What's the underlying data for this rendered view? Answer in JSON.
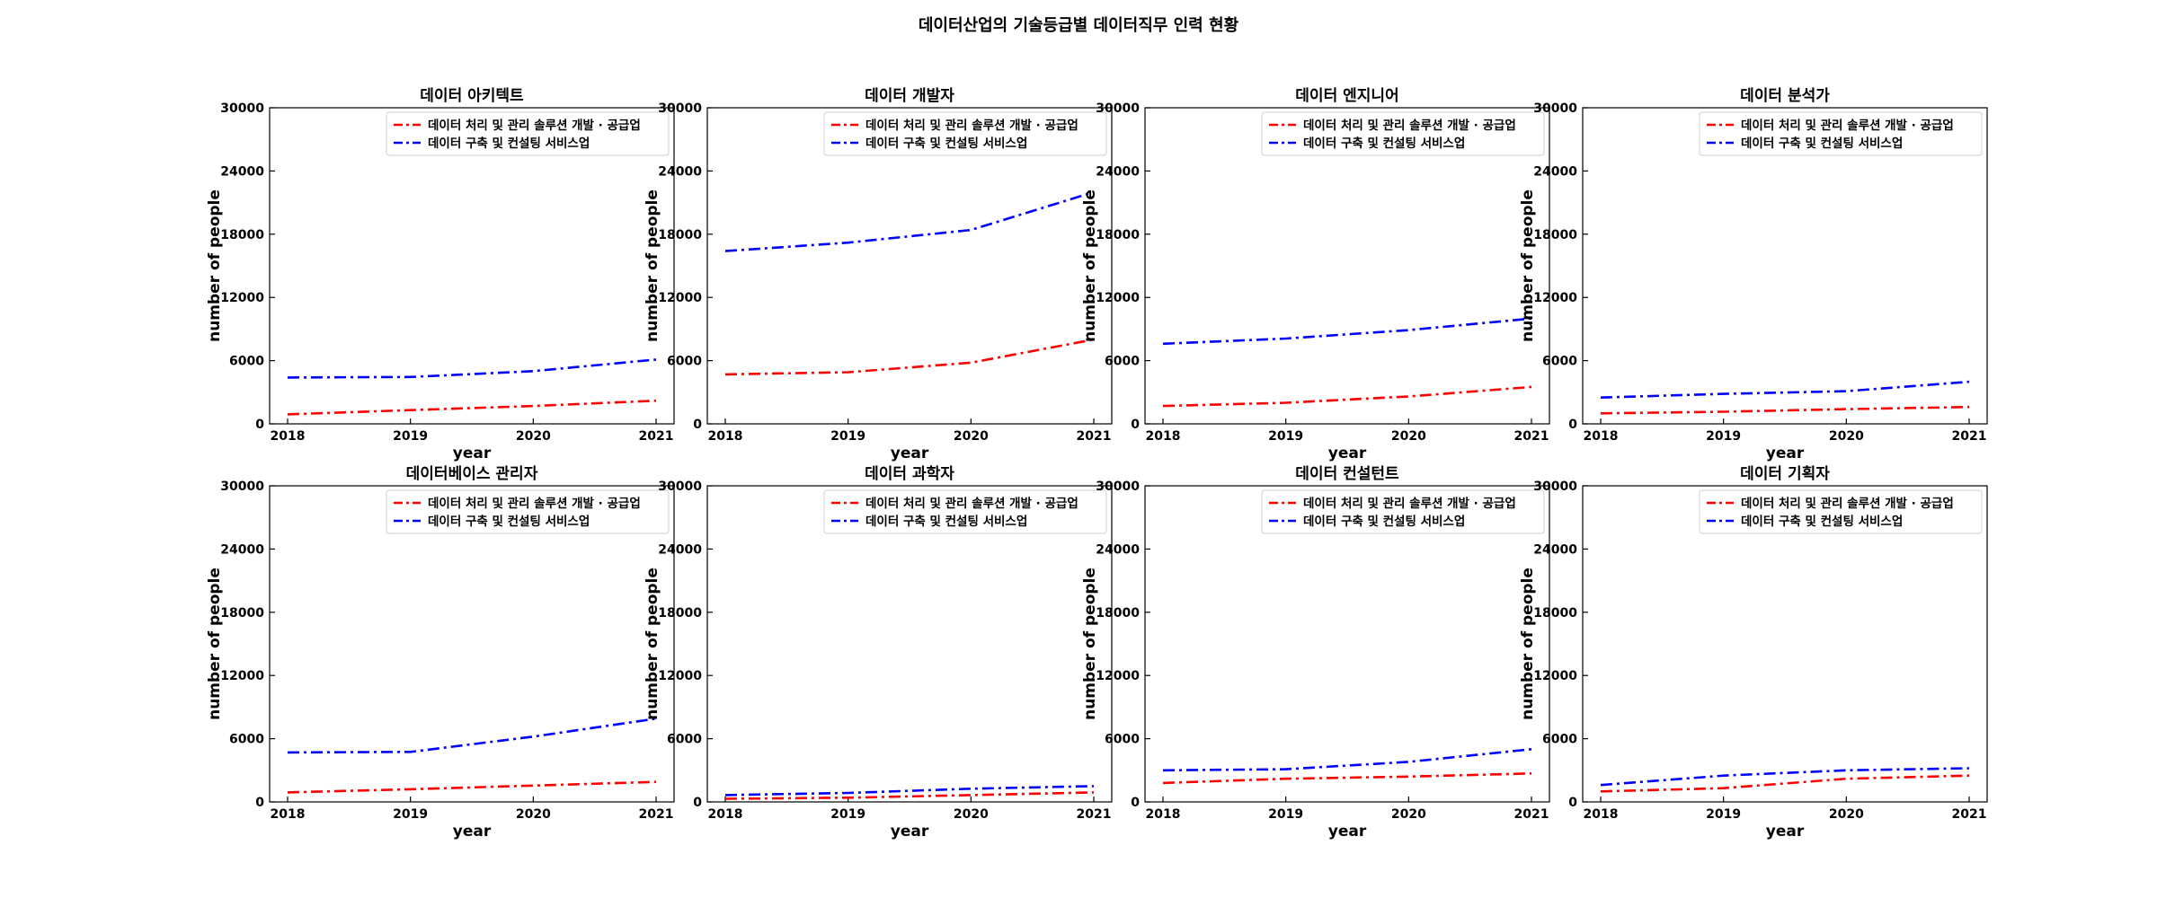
{
  "figure": {
    "title": "데이터산업의 기술등급별 데이터직무 인력 현황"
  },
  "colors": {
    "series_1": "#ff0000",
    "series_2": "#0000ff"
  },
  "chart_data": [
    {
      "type": "line",
      "title": "데이터 아키텍트",
      "xlabel": "year",
      "ylabel": "number of people",
      "x": [
        2018,
        2019,
        2020,
        2021
      ],
      "ylim": [
        0,
        30000
      ],
      "yticks": [
        0,
        6000,
        12000,
        18000,
        24000,
        30000
      ],
      "grid": false,
      "legend_position": "top-right",
      "series": [
        {
          "name": "데이터 처리 및 관리 솔루션 개발 · 공급업",
          "values": [
            900,
            1300,
            1700,
            2200
          ],
          "color": "#ff0000",
          "style": "dashdot"
        },
        {
          "name": "데이터 구축 및 컨설팅 서비스업",
          "values": [
            4400,
            4450,
            5000,
            6100
          ],
          "color": "#0000ff",
          "style": "dashdot"
        }
      ]
    },
    {
      "type": "line",
      "title": "데이터 개발자",
      "xlabel": "year",
      "ylabel": "number of people",
      "x": [
        2018,
        2019,
        2020,
        2021
      ],
      "ylim": [
        0,
        30000
      ],
      "yticks": [
        0,
        6000,
        12000,
        18000,
        24000,
        30000
      ],
      "grid": false,
      "legend_position": "top-right",
      "series": [
        {
          "name": "데이터 처리 및 관리 솔루션 개발 · 공급업",
          "values": [
            4700,
            4900,
            5800,
            8000
          ],
          "color": "#ff0000",
          "style": "dashdot"
        },
        {
          "name": "데이터 구축 및 컨설팅 서비스업",
          "values": [
            16400,
            17200,
            18400,
            22000
          ],
          "color": "#0000ff",
          "style": "dashdot"
        }
      ]
    },
    {
      "type": "line",
      "title": "데이터 엔지니어",
      "xlabel": "year",
      "ylabel": "number of people",
      "x": [
        2018,
        2019,
        2020,
        2021
      ],
      "ylim": [
        0,
        30000
      ],
      "yticks": [
        0,
        6000,
        12000,
        18000,
        24000,
        30000
      ],
      "grid": false,
      "legend_position": "top-right",
      "series": [
        {
          "name": "데이터 처리 및 관리 솔루션 개발 · 공급업",
          "values": [
            1700,
            2000,
            2600,
            3500
          ],
          "color": "#ff0000",
          "style": "dashdot"
        },
        {
          "name": "데이터 구축 및 컨설팅 서비스업",
          "values": [
            7600,
            8100,
            8900,
            10000
          ],
          "color": "#0000ff",
          "style": "dashdot"
        }
      ]
    },
    {
      "type": "line",
      "title": "데이터 분석가",
      "xlabel": "year",
      "ylabel": "number of people",
      "x": [
        2018,
        2019,
        2020,
        2021
      ],
      "ylim": [
        0,
        30000
      ],
      "yticks": [
        0,
        6000,
        12000,
        18000,
        24000,
        30000
      ],
      "grid": false,
      "legend_position": "top-right",
      "series": [
        {
          "name": "데이터 처리 및 관리 솔루션 개발 · 공급업",
          "values": [
            1000,
            1150,
            1400,
            1600
          ],
          "color": "#ff0000",
          "style": "dashdot"
        },
        {
          "name": "데이터 구축 및 컨설팅 서비스업",
          "values": [
            2500,
            2850,
            3100,
            4000
          ],
          "color": "#0000ff",
          "style": "dashdot"
        }
      ]
    },
    {
      "type": "line",
      "title": "데이터베이스 관리자",
      "xlabel": "year",
      "ylabel": "number of people",
      "x": [
        2018,
        2019,
        2020,
        2021
      ],
      "ylim": [
        0,
        30000
      ],
      "yticks": [
        0,
        6000,
        12000,
        18000,
        24000,
        30000
      ],
      "grid": false,
      "legend_position": "top-right",
      "series": [
        {
          "name": "데이터 처리 및 관리 솔루션 개발 · 공급업",
          "values": [
            900,
            1200,
            1550,
            1900
          ],
          "color": "#ff0000",
          "style": "dashdot"
        },
        {
          "name": "데이터 구축 및 컨설팅 서비스업",
          "values": [
            4700,
            4750,
            6200,
            7900
          ],
          "color": "#0000ff",
          "style": "dashdot"
        }
      ]
    },
    {
      "type": "line",
      "title": "데이터 과학자",
      "xlabel": "year",
      "ylabel": "number of people",
      "x": [
        2018,
        2019,
        2020,
        2021
      ],
      "ylim": [
        0,
        30000
      ],
      "yticks": [
        0,
        6000,
        12000,
        18000,
        24000,
        30000
      ],
      "grid": false,
      "legend_position": "top-right",
      "series": [
        {
          "name": "데이터 처리 및 관리 솔루션 개발 · 공급업",
          "values": [
            300,
            400,
            650,
            900
          ],
          "color": "#ff0000",
          "style": "dashdot"
        },
        {
          "name": "데이터 구축 및 컨설팅 서비스업",
          "values": [
            650,
            850,
            1250,
            1500
          ],
          "color": "#0000ff",
          "style": "dashdot"
        }
      ]
    },
    {
      "type": "line",
      "title": "데이터 컨설턴트",
      "xlabel": "year",
      "ylabel": "number of people",
      "x": [
        2018,
        2019,
        2020,
        2021
      ],
      "ylim": [
        0,
        30000
      ],
      "yticks": [
        0,
        6000,
        12000,
        18000,
        24000,
        30000
      ],
      "grid": false,
      "legend_position": "top-right",
      "series": [
        {
          "name": "데이터 처리 및 관리 솔루션 개발 · 공급업",
          "values": [
            1800,
            2200,
            2400,
            2700
          ],
          "color": "#ff0000",
          "style": "dashdot"
        },
        {
          "name": "데이터 구축 및 컨설팅 서비스업",
          "values": [
            3000,
            3100,
            3800,
            5000
          ],
          "color": "#0000ff",
          "style": "dashdot"
        }
      ]
    },
    {
      "type": "line",
      "title": "데이터 기획자",
      "xlabel": "year",
      "ylabel": "number of people",
      "x": [
        2018,
        2019,
        2020,
        2021
      ],
      "ylim": [
        0,
        30000
      ],
      "yticks": [
        0,
        6000,
        12000,
        18000,
        24000,
        30000
      ],
      "grid": false,
      "legend_position": "top-right",
      "series": [
        {
          "name": "데이터 처리 및 관리 솔루션 개발 · 공급업",
          "values": [
            1000,
            1300,
            2200,
            2500
          ],
          "color": "#ff0000",
          "style": "dashdot"
        },
        {
          "name": "데이터 구축 및 컨설팅 서비스업",
          "values": [
            1600,
            2500,
            3000,
            3200
          ],
          "color": "#0000ff",
          "style": "dashdot"
        }
      ]
    }
  ]
}
